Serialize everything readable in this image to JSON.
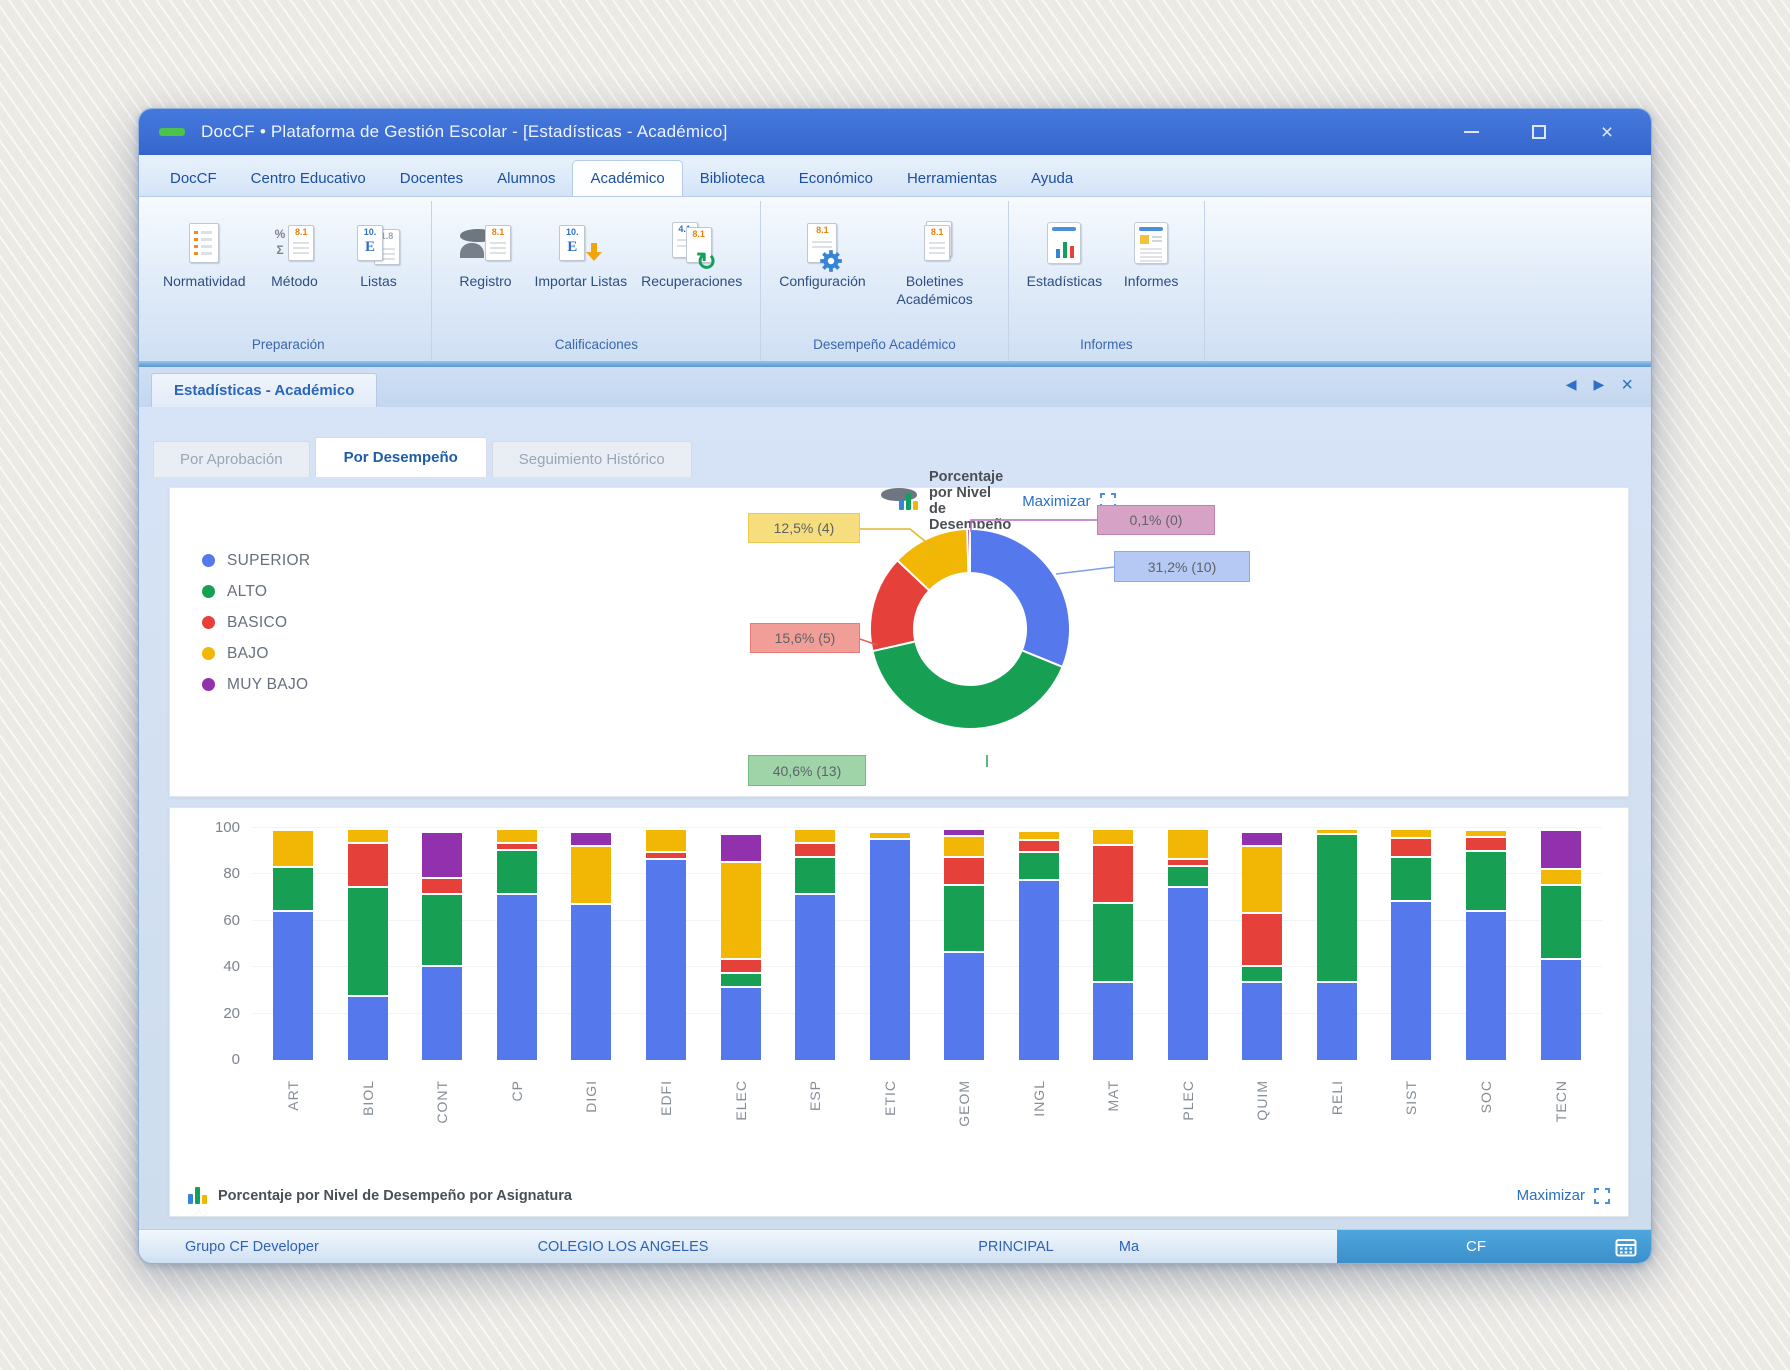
{
  "window": {
    "title": "DocCF • Plataforma de Gestión Escolar - [Estadísticas - Académico]"
  },
  "menu": {
    "items": [
      {
        "label": "DocCF",
        "active": false
      },
      {
        "label": "Centro Educativo",
        "active": false
      },
      {
        "label": "Docentes",
        "active": false
      },
      {
        "label": "Alumnos",
        "active": false
      },
      {
        "label": "Académico",
        "active": true
      },
      {
        "label": "Biblioteca",
        "active": false
      },
      {
        "label": "Económico",
        "active": false
      },
      {
        "label": "Herramientas",
        "active": false
      },
      {
        "label": "Ayuda",
        "active": false
      }
    ]
  },
  "ribbon": {
    "groups": [
      {
        "label": "Preparación",
        "items": [
          {
            "label": "Normatividad",
            "icon": "document-checklist-icon"
          },
          {
            "label": "Método",
            "icon": "method-formula-icon"
          },
          {
            "label": "Listas",
            "icon": "lists-documents-icon"
          }
        ]
      },
      {
        "label": "Calificaciones",
        "items": [
          {
            "label": "Registro",
            "icon": "person-register-icon"
          },
          {
            "label": "Importar Listas",
            "icon": "import-lists-icon"
          },
          {
            "label": "Recuperaciones",
            "icon": "refresh-documents-icon"
          }
        ]
      },
      {
        "label": "Desempeño Académico",
        "items": [
          {
            "label": "Configuración",
            "icon": "gear-document-icon"
          },
          {
            "label": "Boletines Académicos",
            "icon": "report-cards-icon"
          }
        ]
      },
      {
        "label": "Informes",
        "items": [
          {
            "label": "Estadísticas",
            "icon": "statistics-chart-icon"
          },
          {
            "label": "Informes",
            "icon": "report-document-icon"
          }
        ]
      }
    ]
  },
  "document_tabs": {
    "active_tab": "Estadísticas - Académico",
    "nav": [
      {
        "name": "tab-prev-icon",
        "glyph": "◀"
      },
      {
        "name": "tab-next-icon",
        "glyph": "▶"
      },
      {
        "name": "tab-close-icon",
        "glyph": "×"
      }
    ]
  },
  "subtabs": [
    {
      "label": "Por Aprobación",
      "active": false
    },
    {
      "label": "Por Desempeño",
      "active": true
    },
    {
      "label": "Seguimiento Histórico",
      "active": false
    }
  ],
  "ui": {
    "maximize_label": "Maximizar"
  },
  "chart_data": [
    {
      "type": "pie",
      "subtype": "donut",
      "title": "Porcentaje por Nivel de Desempeño",
      "legend_position": "left",
      "slices": [
        {
          "label": "SUPERIOR",
          "pct": 31.2,
          "count": 10,
          "callout": "31,2% (10)",
          "color": "#5579ec"
        },
        {
          "label": "ALTO",
          "pct": 40.6,
          "count": 13,
          "callout": "40,6% (13)",
          "color": "#17a053"
        },
        {
          "label": "BASICO",
          "pct": 15.6,
          "count": 5,
          "callout": "15,6% (5)",
          "color": "#e6403a"
        },
        {
          "label": "BAJO",
          "pct": 12.5,
          "count": 4,
          "callout": "12,5% (4)",
          "color": "#f2b705"
        },
        {
          "label": "MUY BAJO",
          "pct": 0.1,
          "count": 0,
          "callout": "0,1% (0)",
          "color": "#9231ad"
        }
      ]
    },
    {
      "type": "bar",
      "stacked": true,
      "title": "Porcentaje por Nivel de Desempeño por Asignatura",
      "ylim": [
        0,
        100
      ],
      "yticks": [
        0,
        20,
        40,
        60,
        80,
        100
      ],
      "grid": true,
      "categories": [
        "ART",
        "BIOL",
        "CONT",
        "CP",
        "DIGI",
        "EDFI",
        "ELEC",
        "ESP",
        "ETIC",
        "GEOM",
        "INGL",
        "MAT",
        "PLEC",
        "QUIM",
        "RELI",
        "SIST",
        "SOC",
        "TECN"
      ],
      "series": [
        {
          "name": "SUPERIOR",
          "color": "#5579ec",
          "values": [
            64,
            27,
            40,
            71,
            67,
            86,
            31,
            71,
            95,
            46,
            77,
            33,
            74,
            33,
            33,
            68,
            64,
            43
          ]
        },
        {
          "name": "ALTO",
          "color": "#17a053",
          "values": [
            19,
            47,
            31,
            19,
            0,
            0,
            6,
            16,
            0,
            29,
            12,
            34,
            9,
            7,
            64,
            19,
            26,
            32
          ]
        },
        {
          "name": "BASICO",
          "color": "#e6403a",
          "values": [
            0,
            19,
            7,
            3,
            0,
            3,
            6,
            6,
            0,
            12,
            5,
            25,
            3,
            23,
            0,
            8,
            6,
            0
          ]
        },
        {
          "name": "BAJO",
          "color": "#f2b705",
          "values": [
            16,
            6,
            0,
            6,
            25,
            10,
            42,
            6,
            3,
            9,
            4,
            7,
            13,
            29,
            2,
            4,
            3,
            7
          ]
        },
        {
          "name": "MUY BAJO",
          "color": "#9231ad",
          "values": [
            0,
            0,
            20,
            0,
            6,
            0,
            12,
            0,
            0,
            3,
            0,
            0,
            0,
            6,
            0,
            0,
            0,
            17
          ]
        }
      ]
    }
  ],
  "status_bar": {
    "group": "Grupo CF Developer",
    "school": "COLEGIO LOS ANGELES",
    "role": "PRINCIPAL",
    "short": "Ma",
    "brand": "CF"
  }
}
